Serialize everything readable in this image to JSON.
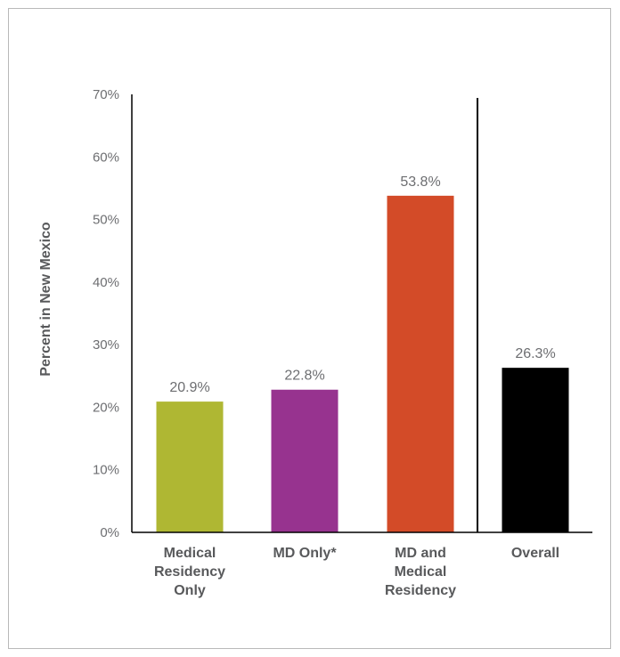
{
  "chart_data": {
    "type": "bar",
    "title": "",
    "xlabel": "",
    "ylabel": "Percent in New Mexico",
    "ylim": [
      0,
      70
    ],
    "yticks": [
      0,
      10,
      20,
      30,
      40,
      50,
      60,
      70
    ],
    "ytick_labels": [
      "0%",
      "10%",
      "20%",
      "30%",
      "40%",
      "50%",
      "60%",
      "70%"
    ],
    "grid": false,
    "categories": [
      [
        "Medical",
        "Residency",
        "Only"
      ],
      [
        "MD Only*"
      ],
      [
        "MD and",
        "Medical",
        "Residency"
      ],
      [
        "Overall"
      ]
    ],
    "values": [
      20.9,
      22.8,
      53.8,
      26.3
    ],
    "value_labels": [
      "20.9%",
      "22.8%",
      "53.8%",
      "26.3%"
    ],
    "colors": [
      "#afb733",
      "#97338f",
      "#d34b28",
      "#000000"
    ],
    "separator_before_category": 3
  }
}
